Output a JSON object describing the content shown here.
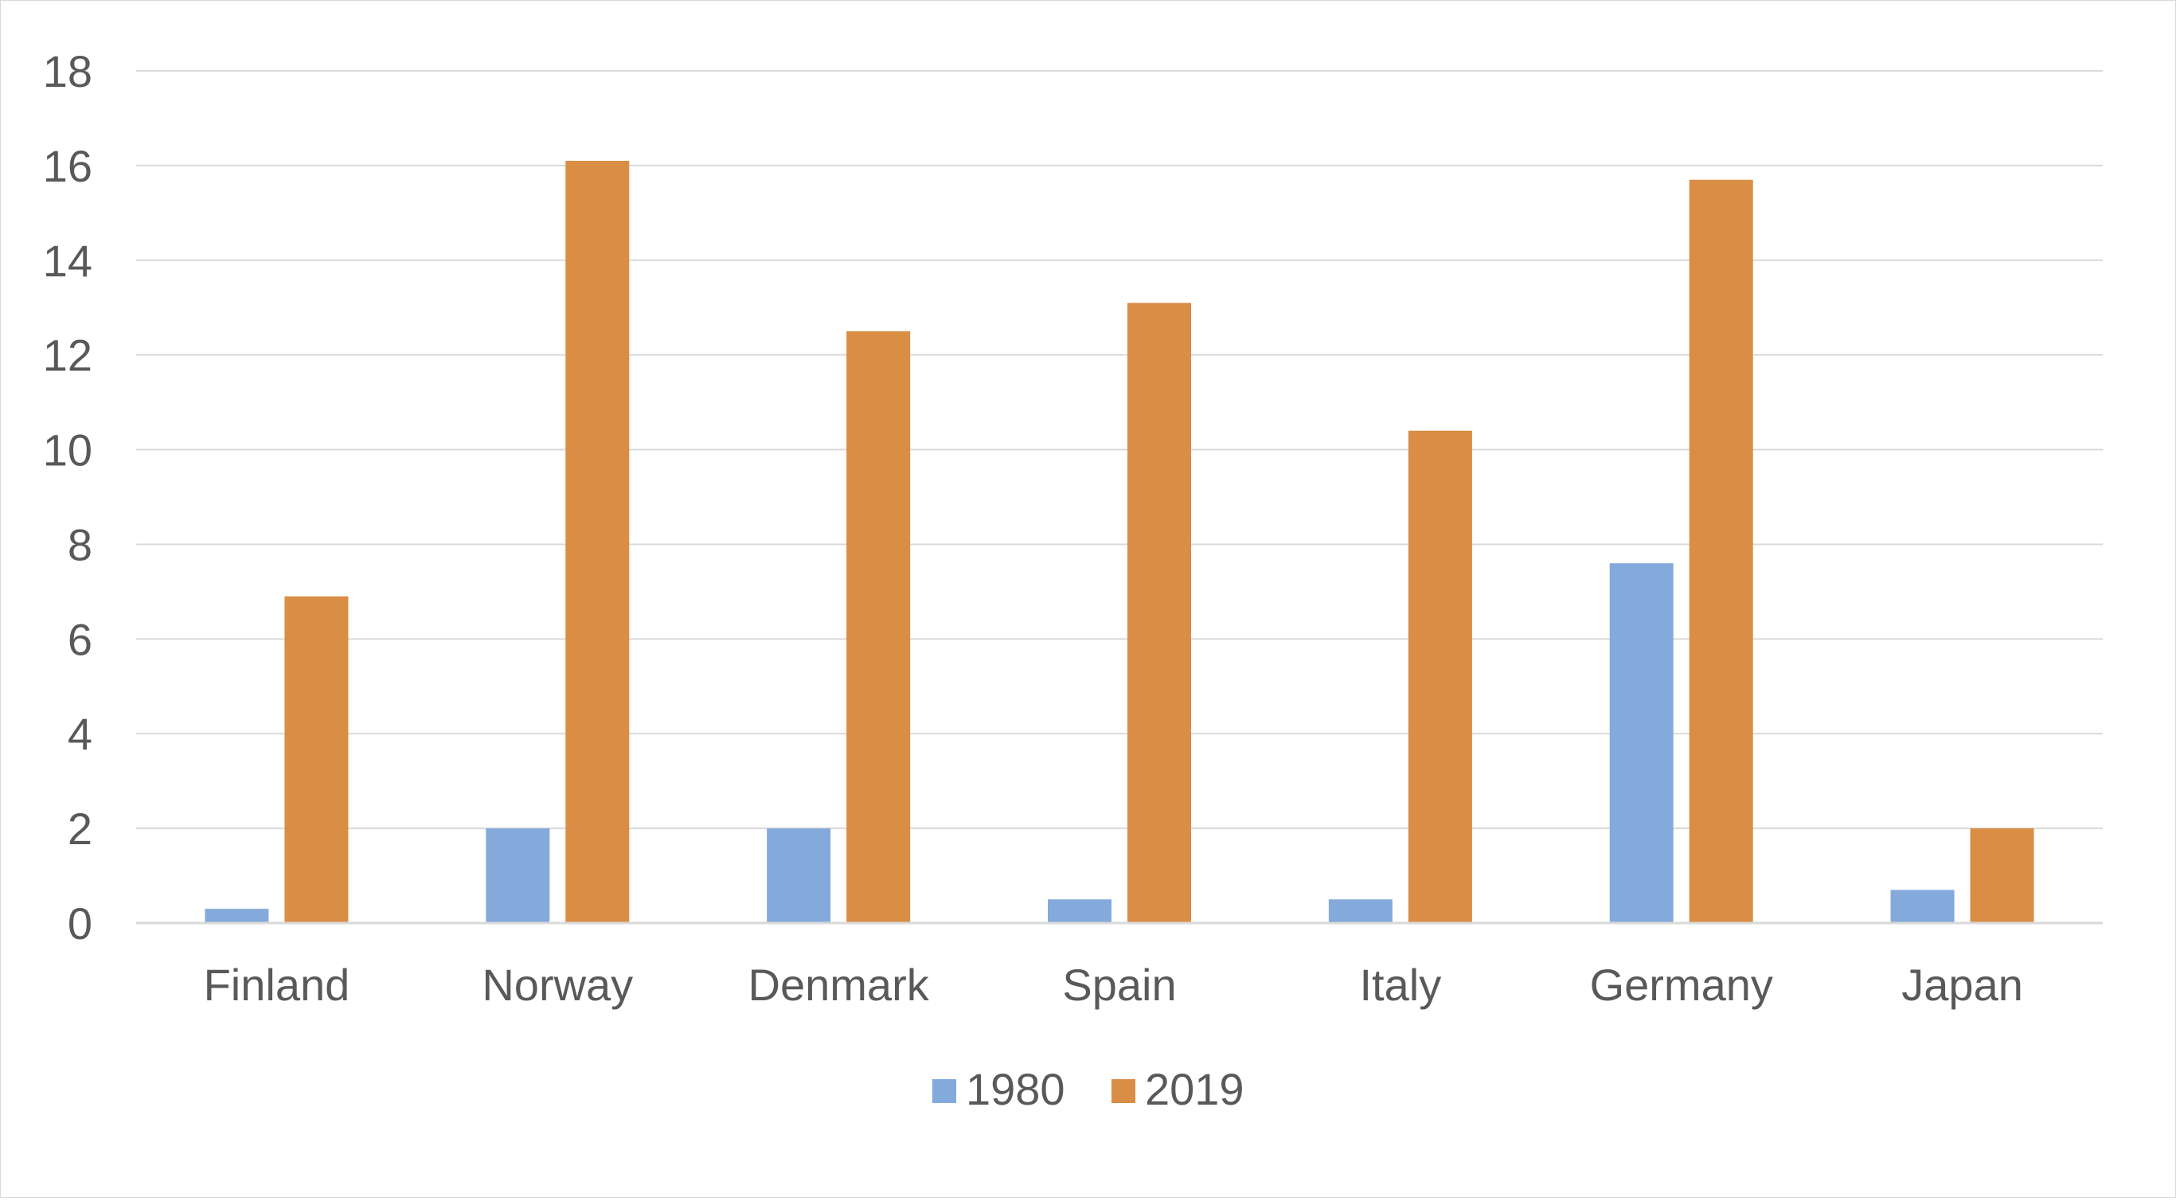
{
  "chart_data": {
    "type": "bar",
    "title": "",
    "xlabel": "",
    "ylabel": "",
    "categories": [
      "Finland",
      "Norway",
      "Denmark",
      "Spain",
      "Italy",
      "Germany",
      "Japan"
    ],
    "series": [
      {
        "name": "1980",
        "color": "#84aadb",
        "values": [
          0.3,
          2.0,
          2.0,
          0.5,
          0.5,
          7.6,
          0.7
        ]
      },
      {
        "name": "2019",
        "color": "#d98d45",
        "values": [
          6.9,
          16.1,
          12.5,
          13.1,
          10.4,
          15.7,
          2.0
        ]
      }
    ],
    "ylim": [
      0,
      18
    ],
    "yticks": [
      "0",
      "2",
      "4",
      "6",
      "8",
      "10",
      "12",
      "14",
      "16",
      "18"
    ],
    "grid": true,
    "gridline_color": "#d9d9d9",
    "legend_position": "bottom"
  }
}
